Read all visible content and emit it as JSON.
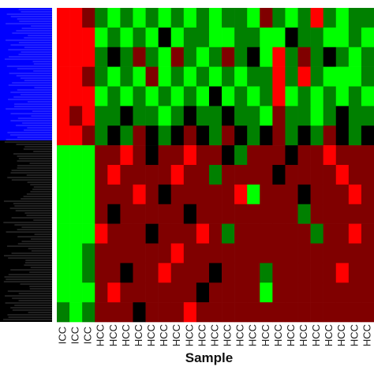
{
  "chart_data": {
    "type": "heatmap",
    "xlabel": "Sample",
    "categories": [
      "ICC",
      "ICC",
      "ICC",
      "HCC",
      "HCC",
      "HCC",
      "HCC",
      "HCC",
      "HCC",
      "HCC",
      "HCC",
      "HCC",
      "HCC",
      "HCC",
      "HCC",
      "HCC",
      "HCC",
      "HCC",
      "HCC",
      "HCC",
      "HCC",
      "HCC",
      "HCC",
      "HCC",
      "HCC"
    ],
    "zlim": [
      -2,
      2
    ],
    "colormap": {
      "low": "#00ff00",
      "mid": "#000000",
      "high": "#ff0000"
    },
    "values": [
      [
        2,
        2,
        1,
        -1,
        -2,
        -1,
        -2,
        -1,
        -2,
        -1,
        -2,
        -1,
        -2,
        -1,
        -1,
        -2,
        1,
        -1,
        -2,
        -1,
        2,
        -1,
        -2,
        -1,
        -1
      ],
      [
        2,
        2,
        2,
        -2,
        -1,
        -2,
        -1,
        -2,
        0,
        -2,
        -1,
        -1,
        -2,
        -2,
        -1,
        -1,
        -2,
        -2,
        0,
        -1,
        -1,
        -2,
        -2,
        -1,
        -2
      ],
      [
        2,
        2,
        2,
        -1,
        0,
        -1,
        1,
        -1,
        -2,
        1,
        -1,
        -2,
        -1,
        1,
        -1,
        0,
        -2,
        2,
        -1,
        1,
        -1,
        0,
        -1,
        -2,
        -1
      ],
      [
        2,
        2,
        1,
        -1,
        -2,
        -1,
        -2,
        1,
        -2,
        -1,
        -2,
        -1,
        -2,
        -1,
        -2,
        -1,
        -1,
        2,
        -1,
        2,
        -1,
        -2,
        -2,
        -2,
        -1
      ],
      [
        2,
        2,
        2,
        -2,
        -1,
        -2,
        -1,
        -2,
        -1,
        -2,
        -1,
        -2,
        0,
        -2,
        -1,
        -2,
        -1,
        2,
        -2,
        -1,
        -2,
        -1,
        -2,
        -1,
        -2
      ],
      [
        2,
        1,
        2,
        -1,
        -1,
        0,
        -1,
        -1,
        -2,
        -1,
        0,
        -1,
        -1,
        0,
        -1,
        -1,
        -2,
        1,
        -1,
        -1,
        -2,
        -1,
        0,
        -1,
        -1
      ],
      [
        2,
        2,
        1,
        -1,
        0,
        -1,
        1,
        0,
        -1,
        0,
        1,
        0,
        -1,
        1,
        0,
        -1,
        0,
        1,
        -1,
        0,
        -1,
        1,
        0,
        -1,
        0
      ],
      [
        -2,
        -2,
        -2,
        1,
        1,
        2,
        1,
        0,
        1,
        1,
        2,
        1,
        1,
        0,
        -1,
        1,
        1,
        1,
        0,
        1,
        1,
        2,
        1,
        1,
        1
      ],
      [
        -2,
        -2,
        -2,
        1,
        2,
        1,
        1,
        1,
        1,
        2,
        1,
        1,
        -1,
        1,
        1,
        1,
        1,
        0,
        1,
        1,
        1,
        1,
        2,
        1,
        1
      ],
      [
        -2,
        -2,
        -2,
        1,
        1,
        1,
        2,
        1,
        0,
        1,
        1,
        1,
        1,
        1,
        2,
        -2,
        1,
        1,
        1,
        0,
        1,
        1,
        1,
        2,
        1
      ],
      [
        -2,
        -2,
        -2,
        1,
        0,
        1,
        1,
        1,
        1,
        1,
        0,
        1,
        1,
        1,
        1,
        1,
        1,
        1,
        1,
        -1,
        1,
        1,
        1,
        1,
        1
      ],
      [
        -2,
        -2,
        -2,
        2,
        1,
        1,
        1,
        0,
        1,
        1,
        1,
        2,
        1,
        -1,
        1,
        1,
        1,
        1,
        1,
        1,
        -1,
        1,
        1,
        2,
        1
      ],
      [
        -2,
        -2,
        -1,
        1,
        1,
        1,
        1,
        1,
        1,
        2,
        1,
        1,
        1,
        1,
        1,
        1,
        1,
        1,
        1,
        1,
        1,
        1,
        1,
        1,
        1
      ],
      [
        -2,
        -2,
        -1,
        1,
        1,
        0,
        1,
        1,
        2,
        1,
        1,
        1,
        0,
        1,
        1,
        1,
        -1,
        1,
        1,
        1,
        1,
        1,
        2,
        1,
        1
      ],
      [
        -2,
        -2,
        -2,
        1,
        2,
        1,
        1,
        1,
        1,
        1,
        1,
        0,
        1,
        1,
        1,
        1,
        -2,
        1,
        1,
        1,
        1,
        1,
        1,
        1,
        1
      ],
      [
        -1,
        -2,
        -1,
        1,
        1,
        1,
        0,
        1,
        1,
        1,
        2,
        1,
        1,
        1,
        1,
        1,
        1,
        1,
        1,
        1,
        1,
        1,
        1,
        1,
        1
      ]
    ]
  }
}
